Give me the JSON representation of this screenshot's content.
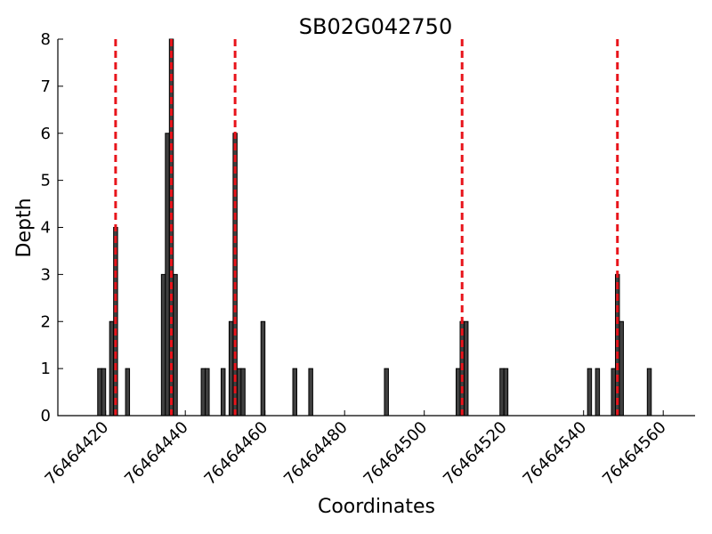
{
  "chart_data": {
    "type": "bar",
    "title": "SB02G042750",
    "xlabel": "Coordinates",
    "ylabel": "Depth",
    "xlim": [
      76464408,
      76464568
    ],
    "ylim": [
      0,
      8
    ],
    "x_ticks": [
      76464420,
      76464440,
      76464460,
      76464480,
      76464500,
      76464520,
      76464540,
      76464560
    ],
    "y_ticks": [
      0,
      1,
      2,
      3,
      4,
      5,
      6,
      7,
      8
    ],
    "bar_color": "#404040",
    "marker_color": "#e8141b",
    "bars": [
      {
        "x": 76464418,
        "y": 1
      },
      {
        "x": 76464419,
        "y": 1
      },
      {
        "x": 76464421,
        "y": 2
      },
      {
        "x": 76464422,
        "y": 4
      },
      {
        "x": 76464425,
        "y": 1
      },
      {
        "x": 76464434,
        "y": 3
      },
      {
        "x": 76464435,
        "y": 6
      },
      {
        "x": 76464436,
        "y": 8
      },
      {
        "x": 76464437,
        "y": 3
      },
      {
        "x": 76464444,
        "y": 1
      },
      {
        "x": 76464445,
        "y": 1
      },
      {
        "x": 76464449,
        "y": 1
      },
      {
        "x": 76464451,
        "y": 2
      },
      {
        "x": 76464452,
        "y": 6
      },
      {
        "x": 76464453,
        "y": 1
      },
      {
        "x": 76464454,
        "y": 1
      },
      {
        "x": 76464459,
        "y": 2
      },
      {
        "x": 76464467,
        "y": 1
      },
      {
        "x": 76464471,
        "y": 1
      },
      {
        "x": 76464490,
        "y": 1
      },
      {
        "x": 76464508,
        "y": 1
      },
      {
        "x": 76464509,
        "y": 2
      },
      {
        "x": 76464510,
        "y": 2
      },
      {
        "x": 76464519,
        "y": 1
      },
      {
        "x": 76464520,
        "y": 1
      },
      {
        "x": 76464541,
        "y": 1
      },
      {
        "x": 76464543,
        "y": 1
      },
      {
        "x": 76464547,
        "y": 1
      },
      {
        "x": 76464548,
        "y": 3
      },
      {
        "x": 76464549,
        "y": 2
      },
      {
        "x": 76464556,
        "y": 1
      }
    ],
    "markers": [
      76464422.5,
      76464436.5,
      76464452.5,
      76464509.5,
      76464548.5
    ]
  }
}
